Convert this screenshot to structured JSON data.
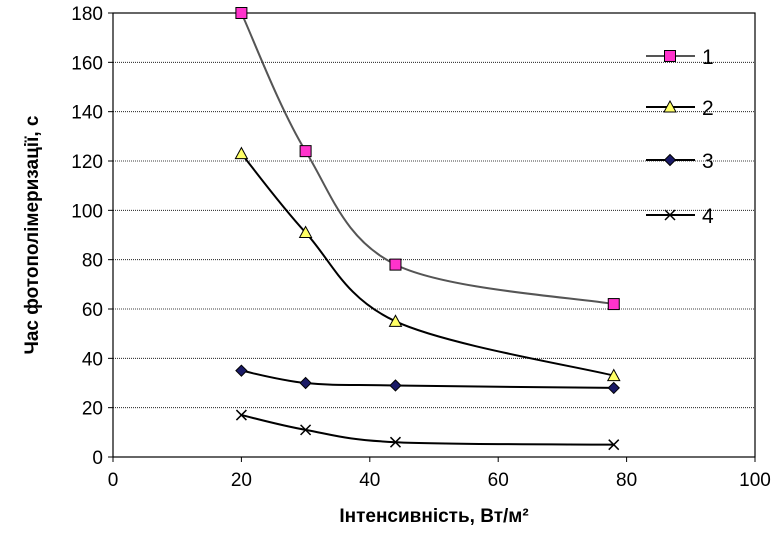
{
  "chart_data": {
    "type": "line",
    "xlabel": "Інтенсивність, Вт/м²",
    "ylabel": "Час фотополімеризації, с",
    "xlim": [
      0,
      100
    ],
    "ylim": [
      0,
      180
    ],
    "x_ticks": [
      0,
      20,
      40,
      60,
      80,
      100
    ],
    "y_ticks": [
      0,
      20,
      40,
      60,
      80,
      100,
      120,
      140,
      160,
      180
    ],
    "grid": "horizontal",
    "legend_position": "right",
    "x": [
      20,
      30,
      44,
      78
    ],
    "series": [
      {
        "name": "1",
        "values": [
          180,
          124,
          78,
          62
        ],
        "marker": "square",
        "marker_color": "#ff33cc",
        "line_color": "#555555"
      },
      {
        "name": "2",
        "values": [
          123,
          91,
          55,
          33
        ],
        "marker": "triangle",
        "marker_color": "#ffff66",
        "line_color": "#000000"
      },
      {
        "name": "3",
        "values": [
          35,
          30,
          29,
          28
        ],
        "marker": "diamond",
        "marker_color": "#1a1a66",
        "line_color": "#000000"
      },
      {
        "name": "4",
        "values": [
          17,
          11,
          6,
          5
        ],
        "marker": "x",
        "marker_color": "#000000",
        "line_color": "#000000"
      }
    ]
  }
}
